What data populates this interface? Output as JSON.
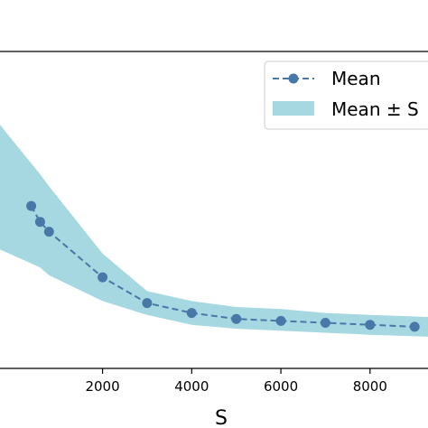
{
  "chart_data": {
    "type": "line",
    "title": "",
    "xlabel": "S",
    "ylabel": "",
    "xlim": [
      -300,
      9300
    ],
    "ylim": [
      0,
      1.6
    ],
    "xticks": [
      "2000",
      "4000",
      "6000",
      "8000"
    ],
    "xtick_values": [
      2000,
      4000,
      6000,
      8000
    ],
    "grid": false,
    "legend_position": "top-right",
    "series": [
      {
        "name": "Mean",
        "style": "dashed-line-with-circle-markers",
        "color": "#4878a8",
        "x": [
          400,
          600,
          800,
          2000,
          3000,
          4000,
          5000,
          6000,
          7000,
          8000,
          9000
        ],
        "y": [
          0.82,
          0.74,
          0.69,
          0.46,
          0.33,
          0.28,
          0.25,
          0.24,
          0.23,
          0.22,
          0.21
        ]
      },
      {
        "name": "Mean ± S",
        "style": "filled-band",
        "color": "#a5d8e0",
        "x": [
          -300,
          600,
          800,
          2000,
          3000,
          4000,
          5000,
          6000,
          7000,
          8000,
          9300
        ],
        "upper": [
          1.23,
          0.98,
          0.92,
          0.58,
          0.39,
          0.34,
          0.31,
          0.3,
          0.28,
          0.27,
          0.26
        ],
        "lower": [
          0.6,
          0.51,
          0.47,
          0.34,
          0.27,
          0.22,
          0.2,
          0.19,
          0.18,
          0.17,
          0.16
        ]
      }
    ]
  }
}
